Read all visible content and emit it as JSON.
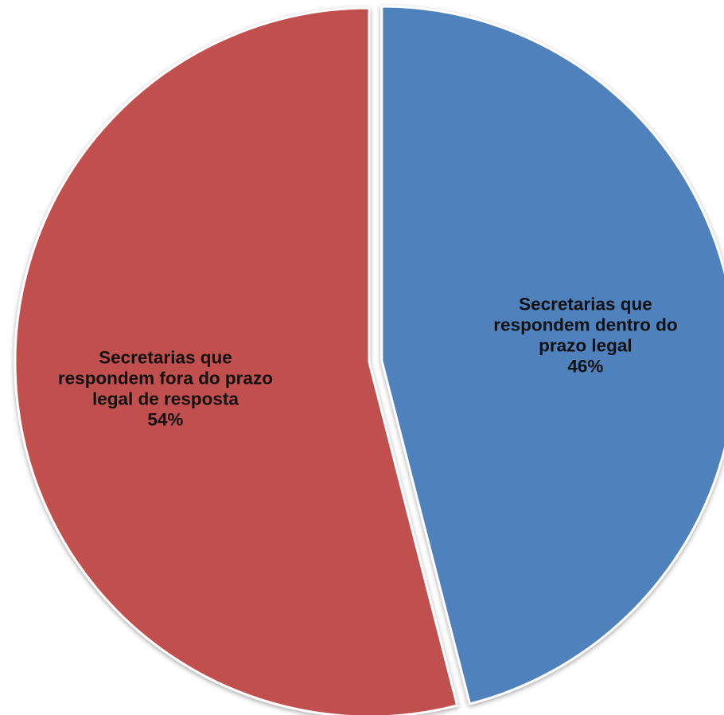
{
  "chart_data": {
    "type": "pie",
    "slices": [
      {
        "label": "Secretarias que respondem dentro do prazo legal",
        "label_lines": [
          "Secretarias que",
          "respondem dentro do",
          "prazo legal"
        ],
        "value": 46,
        "value_label": "46%",
        "color": "#4f81bd",
        "exploded": true
      },
      {
        "label": "Secretarias que respondem fora do prazo legal de resposta",
        "label_lines": [
          "Secretarias que",
          "respondem fora do prazo",
          "legal de resposta"
        ],
        "value": 54,
        "value_label": "54%",
        "color": "#c0504d",
        "exploded": false
      }
    ],
    "start_angle": "12 o'clock",
    "direction": "clockwise",
    "legend": "none",
    "data_labels": "inside"
  }
}
